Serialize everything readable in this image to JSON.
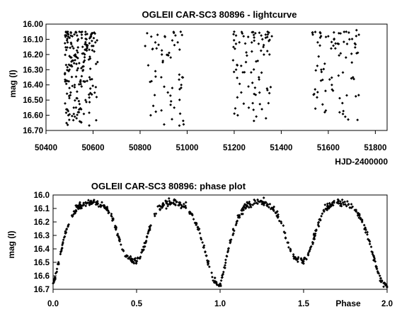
{
  "chart_data": [
    {
      "type": "scatter",
      "title": "OGLEII CAR-SC3 80896 - lightcurve",
      "xlabel": "HJD-2400000",
      "ylabel": "mag (I)",
      "xlim": [
        50400,
        51850
      ],
      "ylim": [
        16.0,
        16.7
      ],
      "y_inverted": true,
      "x_ticks": [
        "50400",
        "50600",
        "50800",
        "51000",
        "51200",
        "51400",
        "51600",
        "51800"
      ],
      "y_ticks": [
        "16.00",
        "16.10",
        "16.20",
        "16.30",
        "16.40",
        "16.50",
        "16.60",
        "16.70"
      ],
      "grid": false,
      "legend": "none",
      "marker": "diamond",
      "color": "#000000",
      "season_ranges": [
        [
          50480,
          50620
        ],
        [
          50820,
          50985
        ],
        [
          51195,
          51360
        ],
        [
          51530,
          51730
        ]
      ],
      "series": [
        {
          "x": [
            50485,
            50492,
            50500,
            50505,
            50512,
            50518,
            50525,
            50530,
            50537,
            50545,
            50552,
            50560,
            50568,
            50575,
            50585,
            50595,
            50605,
            50615,
            50495,
            50508,
            50522,
            50540,
            50556,
            50572,
            50590,
            50610,
            50830,
            50845,
            50870,
            50890,
            50905,
            50918,
            50930,
            50945,
            50960,
            50975,
            50985,
            51200,
            51208,
            51215,
            51222,
            51230,
            51240,
            51250,
            51262,
            51275,
            51290,
            51305,
            51320,
            51335,
            51350,
            51360,
            51540,
            51555,
            51570,
            51585,
            51600,
            51615,
            51630,
            51645,
            51660,
            51675,
            51690,
            51705,
            51720,
            51730
          ],
          "y": [
            16.05,
            16.12,
            16.3,
            16.45,
            16.08,
            16.55,
            16.2,
            16.62,
            16.1,
            16.38,
            16.07,
            16.25,
            16.5,
            16.15,
            16.35,
            16.06,
            16.18,
            16.48,
            16.6,
            16.22,
            16.4,
            16.58,
            16.28,
            16.1,
            16.08,
            16.12,
            16.06,
            16.6,
            16.16,
            16.35,
            16.08,
            16.45,
            16.22,
            16.55,
            16.12,
            16.4,
            16.66,
            16.05,
            16.3,
            16.6,
            16.12,
            16.45,
            16.08,
            16.25,
            16.55,
            16.18,
            16.06,
            16.35,
            16.1,
            16.62,
            16.2,
            16.08,
            16.46,
            16.12,
            16.3,
            16.58,
            16.08,
            16.4,
            16.16,
            16.06,
            16.52,
            16.22,
            16.1,
            16.35,
            16.04,
            16.07
          ]
        }
      ]
    },
    {
      "type": "scatter",
      "title": "OGLEII CAR-SC3 80896: phase plot",
      "xlabel": "Phase",
      "ylabel": "mag (I)",
      "xlim": [
        0.0,
        2.0
      ],
      "ylim": [
        16.0,
        16.7
      ],
      "y_inverted": true,
      "x_ticks": [
        "0.0",
        "0.5",
        "1.0",
        "1.5",
        "2.0"
      ],
      "y_ticks": [
        "16.0",
        "16.1",
        "16.2",
        "16.3",
        "16.4",
        "16.5",
        "16.6",
        "16.7"
      ],
      "grid": false,
      "legend": "none",
      "marker": "diamond",
      "color": "#000000",
      "series": [
        {
          "x": [
            0.0,
            0.02,
            0.04,
            0.06,
            0.08,
            0.1,
            0.12,
            0.14,
            0.16,
            0.18,
            0.2,
            0.22,
            0.24,
            0.26,
            0.28,
            0.3,
            0.32,
            0.34,
            0.36,
            0.38,
            0.4,
            0.42,
            0.44,
            0.46,
            0.48,
            0.5,
            0.52,
            0.54,
            0.56,
            0.58,
            0.6,
            0.62,
            0.64,
            0.66,
            0.68,
            0.7,
            0.72,
            0.74,
            0.76,
            0.78,
            0.8,
            0.82,
            0.84,
            0.86,
            0.88,
            0.9,
            0.92,
            0.94,
            0.96,
            0.98,
            1.0
          ],
          "y": [
            16.67,
            16.58,
            16.46,
            16.35,
            16.26,
            16.19,
            16.14,
            16.1,
            16.08,
            16.07,
            16.06,
            16.06,
            16.05,
            16.06,
            16.07,
            16.08,
            16.1,
            16.14,
            16.19,
            16.26,
            16.34,
            16.41,
            16.46,
            16.48,
            16.49,
            16.49,
            16.46,
            16.4,
            16.32,
            16.24,
            16.17,
            16.12,
            16.09,
            16.07,
            16.06,
            16.05,
            16.05,
            16.06,
            16.07,
            16.08,
            16.1,
            16.13,
            16.17,
            16.22,
            16.29,
            16.37,
            16.46,
            16.55,
            16.62,
            16.66,
            16.67
          ]
        }
      ]
    }
  ]
}
